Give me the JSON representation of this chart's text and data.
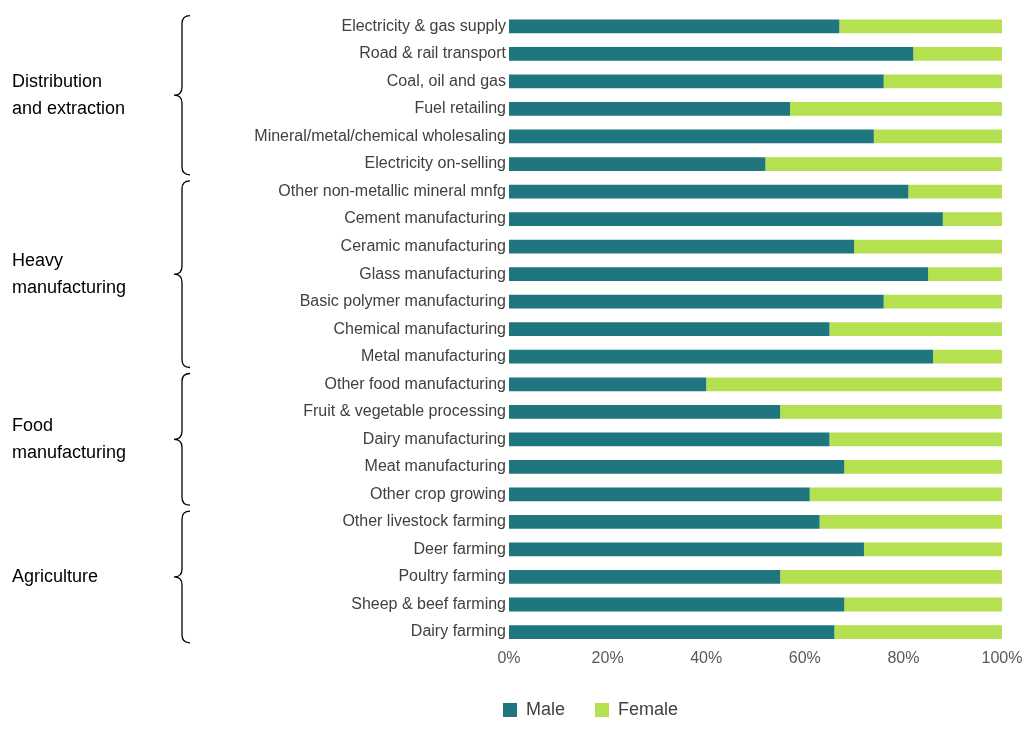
{
  "chart_data": {
    "type": "bar",
    "orientation": "horizontal",
    "stacked": true,
    "categories": [
      "Electricity & gas supply",
      "Road & rail transport",
      "Coal, oil and gas",
      "Fuel retailing",
      "Mineral/metal/chemical wholesaling",
      "Electricity on-selling",
      "Other non-metallic mineral mnfg",
      "Cement manufacturing",
      "Ceramic manufacturing",
      "Glass manufacturing",
      "Basic polymer manufacturing",
      "Chemical manufacturing",
      "Metal manufacturing",
      "Other food manufacturing",
      "Fruit & vegetable processing",
      "Dairy manufacturing",
      "Meat manufacturing",
      "Other crop growing",
      "Other livestock farming",
      "Deer farming",
      "Poultry farming",
      "Sheep & beef farming",
      "Dairy farming"
    ],
    "series": [
      {
        "name": "Male",
        "color": "#1f767e",
        "values": [
          67,
          82,
          76,
          57,
          74,
          52,
          81,
          88,
          70,
          85,
          76,
          65,
          86,
          40,
          55,
          65,
          68,
          61,
          63,
          72,
          55,
          68,
          66
        ]
      },
      {
        "name": "Female",
        "color": "#b5e04f",
        "values": [
          33,
          18,
          24,
          43,
          26,
          48,
          19,
          12,
          30,
          15,
          24,
          35,
          14,
          60,
          45,
          35,
          32,
          39,
          37,
          28,
          45,
          32,
          34
        ]
      }
    ],
    "xlim": [
      0,
      100
    ],
    "xticks": [
      {
        "value": 0,
        "label": "0%"
      },
      {
        "value": 20,
        "label": "20%"
      },
      {
        "value": 40,
        "label": "40%"
      },
      {
        "value": 60,
        "label": "60%"
      },
      {
        "value": 80,
        "label": "80%"
      },
      {
        "value": 100,
        "label": "100%"
      }
    ],
    "annotations": [
      "Distribution and extraction",
      "Heavy manufacturing",
      "Food manufacturing",
      "Agriculture"
    ],
    "grid": false,
    "legend": "bottom"
  }
}
